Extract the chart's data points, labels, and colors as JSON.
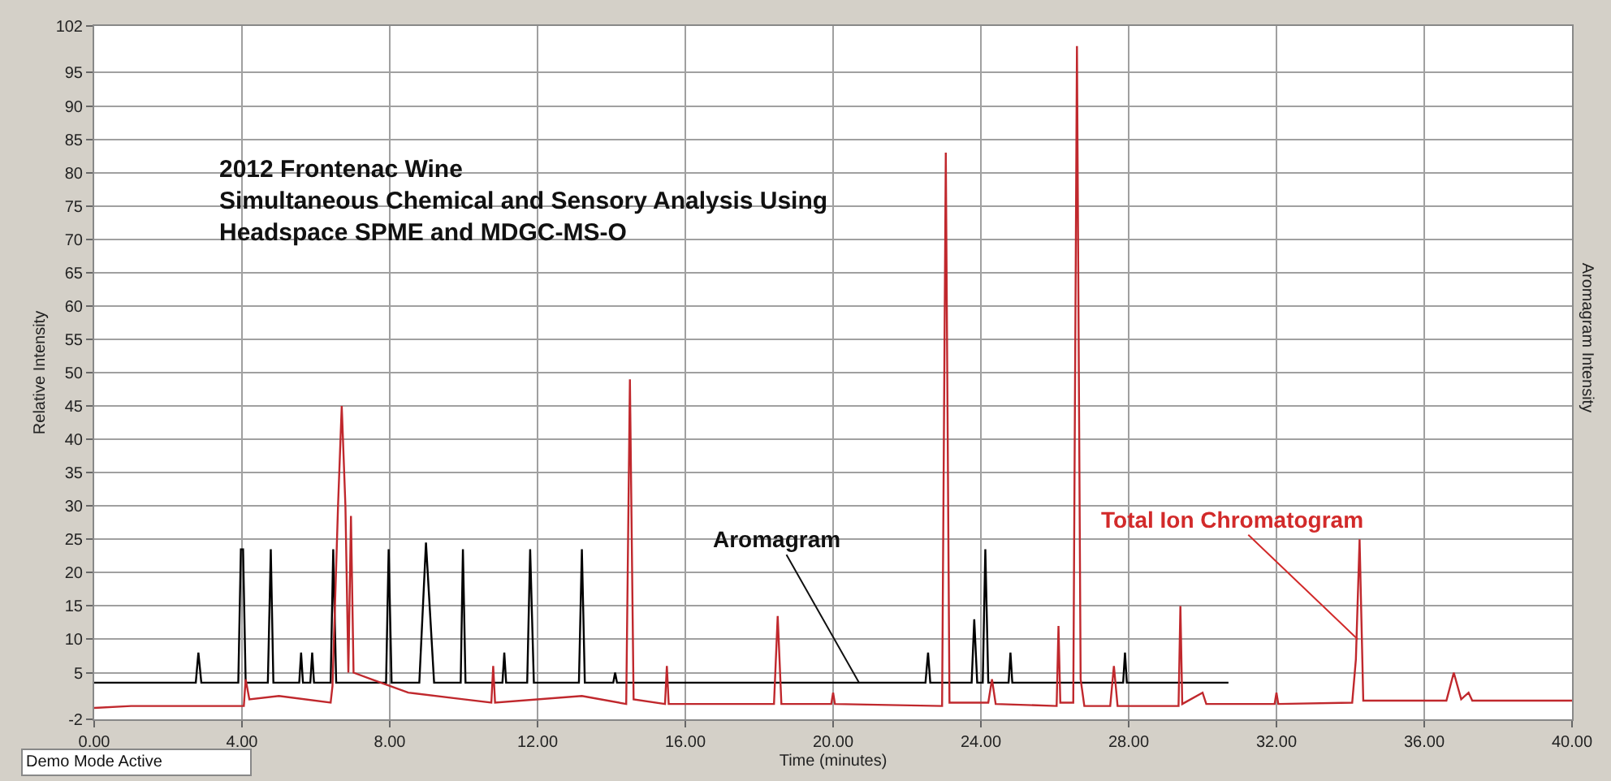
{
  "chart_data": {
    "type": "line",
    "title": "2012 Frontenac Wine\nSimultaneous Chemical and Sensory Analysis Using\nHeadspace SPME and MDGC-MS-O",
    "xlabel": "Time (minutes)",
    "ylabel": "Relative Intensity",
    "y2label": "Aromagram Intensity",
    "xlim": [
      0,
      40
    ],
    "ylim": [
      -2,
      102
    ],
    "xticks": [
      {
        "value": 0,
        "label": "0.00"
      },
      {
        "value": 4,
        "label": "4.00"
      },
      {
        "value": 8,
        "label": "8.00"
      },
      {
        "value": 12,
        "label": "12.00"
      },
      {
        "value": 16,
        "label": "16.00"
      },
      {
        "value": 20,
        "label": "20.00"
      },
      {
        "value": 24,
        "label": "24.00"
      },
      {
        "value": 28,
        "label": "28.00"
      },
      {
        "value": 32,
        "label": "32.00"
      },
      {
        "value": 36,
        "label": "36.00"
      },
      {
        "value": 40,
        "label": "40.00"
      }
    ],
    "yticks": [
      -2,
      5,
      10,
      15,
      20,
      25,
      30,
      35,
      40,
      45,
      50,
      55,
      60,
      65,
      70,
      75,
      80,
      85,
      90,
      95,
      102
    ],
    "grid": true,
    "marker": "none",
    "line_style": "solid",
    "series": [
      {
        "color": "#000000",
        "x": [
          0,
          2.75,
          2.82,
          2.9,
          3.9,
          3.97,
          4.03,
          4.1,
          4.7,
          4.78,
          4.85,
          5.55,
          5.6,
          5.65,
          5.85,
          5.9,
          5.95,
          6.4,
          6.47,
          6.55,
          7.9,
          7.97,
          8.05,
          8.8,
          8.98,
          9.2,
          9.92,
          9.98,
          10.05,
          11.05,
          11.1,
          11.15,
          11.72,
          11.8,
          11.9,
          13.12,
          13.2,
          13.28,
          14.05,
          14.1,
          14.15,
          22.5,
          22.57,
          22.63,
          23.75,
          23.82,
          23.9,
          24.05,
          24.12,
          24.2,
          24.75,
          24.8,
          24.85,
          27.85,
          27.9,
          27.95,
          30.7
        ],
        "values": [
          3.5,
          3.5,
          8,
          3.5,
          3.5,
          23.5,
          23.5,
          3.5,
          3.5,
          23.5,
          3.5,
          3.5,
          8,
          3.5,
          3.5,
          8,
          3.5,
          3.5,
          23.5,
          3.5,
          3.5,
          23.5,
          3.5,
          3.5,
          24.5,
          3.5,
          3.5,
          23.5,
          3.5,
          3.5,
          8,
          3.5,
          3.5,
          23.5,
          3.5,
          3.5,
          23.5,
          3.5,
          3.5,
          5,
          3.5,
          3.5,
          8,
          3.5,
          3.5,
          13,
          3.5,
          3.5,
          23.5,
          3.5,
          3.5,
          8,
          3.5,
          3.5,
          8,
          3.5,
          3.5
        ]
      },
      {
        "color": "#c0282d",
        "x": [
          0,
          1,
          4.05,
          4.1,
          4.2,
          5,
          6.4,
          6.45,
          6.6,
          6.7,
          6.8,
          6.88,
          6.95,
          7.02,
          7.5,
          8.5,
          10,
          10.75,
          10.8,
          10.85,
          13.2,
          14.4,
          14.5,
          14.6,
          15.45,
          15.5,
          15.55,
          18.4,
          18.5,
          18.6,
          19.95,
          20,
          20.05,
          22.95,
          23.05,
          23.15,
          24.2,
          24.3,
          24.4,
          26.05,
          26.1,
          26.15,
          26.5,
          26.6,
          26.7,
          26.8,
          27.5,
          27.6,
          27.7,
          29.35,
          29.4,
          29.45,
          30,
          30.1,
          31.95,
          32,
          32.05,
          34.05,
          34.15,
          34.25,
          34.35,
          36.6,
          36.8,
          37,
          37.2,
          37.3,
          40
        ],
        "values": [
          -0.3,
          0,
          0,
          4,
          1,
          1.5,
          0.5,
          3,
          30,
          45,
          30,
          5,
          28.5,
          5,
          4,
          2,
          1,
          0.5,
          6,
          0.5,
          1.5,
          0.3,
          49,
          1,
          0.3,
          6,
          0.3,
          0.3,
          13.5,
          0.3,
          0.3,
          2,
          0.3,
          0,
          83,
          0.5,
          0.5,
          4,
          0.3,
          0,
          12,
          0.5,
          0.5,
          99,
          4,
          0,
          0,
          6,
          0,
          0,
          15,
          0.3,
          2,
          0.3,
          0.3,
          2,
          0.3,
          0.5,
          7,
          25,
          0.8,
          0.8,
          5,
          1,
          2,
          0.8,
          0.8
        ]
      }
    ],
    "annotations": [
      {
        "text": "Aromagram",
        "x": 20.7,
        "y": 3.5
      },
      {
        "text": "Total Ion Chromatogram",
        "x": 34.2,
        "y": 10
      },
      "Demo Mode Active"
    ]
  }
}
